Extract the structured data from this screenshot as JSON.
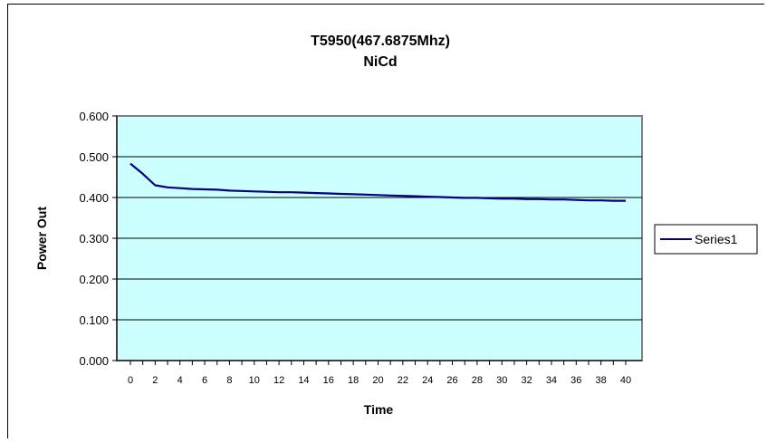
{
  "chart_data": {
    "type": "line",
    "title": "T5950(467.6875Mhz)",
    "subtitle": "NiCd",
    "xlabel": "Time",
    "ylabel": "Power Out",
    "x": [
      0,
      1,
      2,
      3,
      4,
      5,
      6,
      7,
      8,
      9,
      10,
      11,
      12,
      13,
      14,
      15,
      16,
      17,
      18,
      19,
      20,
      21,
      22,
      23,
      24,
      25,
      26,
      27,
      28,
      29,
      30,
      31,
      32,
      33,
      34,
      35,
      36,
      37,
      38,
      39,
      40
    ],
    "x_tick_labels": [
      "0",
      "2",
      "4",
      "6",
      "8",
      "10",
      "12",
      "14",
      "16",
      "18",
      "20",
      "22",
      "24",
      "26",
      "28",
      "30",
      "32",
      "34",
      "36",
      "38",
      "40"
    ],
    "y_tick_labels": [
      "0.000",
      "0.100",
      "0.200",
      "0.300",
      "0.400",
      "0.500",
      "0.600"
    ],
    "ylim": [
      0,
      0.6
    ],
    "xlim": [
      0,
      40
    ],
    "grid": "horizontal",
    "plot_background": "#ccffff",
    "series": [
      {
        "name": "Series1",
        "color": "#000080",
        "values": [
          0.483,
          0.458,
          0.43,
          0.425,
          0.423,
          0.421,
          0.42,
          0.419,
          0.417,
          0.416,
          0.415,
          0.414,
          0.413,
          0.413,
          0.412,
          0.411,
          0.41,
          0.409,
          0.408,
          0.407,
          0.406,
          0.405,
          0.404,
          0.403,
          0.402,
          0.401,
          0.4,
          0.399,
          0.399,
          0.398,
          0.397,
          0.397,
          0.396,
          0.396,
          0.395,
          0.395,
          0.394,
          0.393,
          0.393,
          0.392,
          0.392
        ]
      }
    ],
    "legend_position": "right"
  }
}
